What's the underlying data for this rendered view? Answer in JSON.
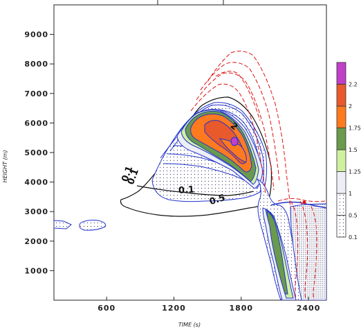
{
  "chart_data": {
    "type": "contour",
    "xlabel": "TIME (s)",
    "ylabel": "HEIGHT (m)",
    "xlim": [
      130,
      2560
    ],
    "ylim": [
      0,
      10000
    ],
    "x_ticks": [
      600,
      1200,
      1800,
      2400
    ],
    "y_ticks": [
      1000,
      2000,
      3000,
      4000,
      5000,
      6000,
      7000,
      8000,
      9000
    ],
    "x_tick_labels": [
      "600",
      "1200",
      "1800",
      "2400"
    ],
    "y_tick_labels": [
      "1000",
      "2000",
      "3000",
      "4000",
      "5000",
      "6000",
      "7000",
      "8000",
      "9000"
    ],
    "colorbar": {
      "levels": [
        0.1,
        0.5,
        1,
        1.25,
        1.5,
        1.75,
        2,
        2.2
      ],
      "labels": [
        "0.1",
        "0.5",
        "1",
        "1.25",
        "1.5",
        "1.75",
        "2",
        "2.2"
      ],
      "colors": [
        "#ffffff",
        "#ffffff",
        "#eeeef8",
        "#d0f0a0",
        "#6a9a4c",
        "#ff7a1f",
        "#e85a2c",
        "#c040c8"
      ],
      "dotted": [
        true,
        true,
        false,
        false,
        false,
        false,
        false,
        false
      ]
    },
    "contour_labels": [
      "0.1",
      "0.1",
      "0.5",
      "0.1",
      "2"
    ],
    "colors": {
      "black_contour": "#111111",
      "blue_contour": "#2233cc",
      "red_dashed": "#dd1111"
    }
  }
}
